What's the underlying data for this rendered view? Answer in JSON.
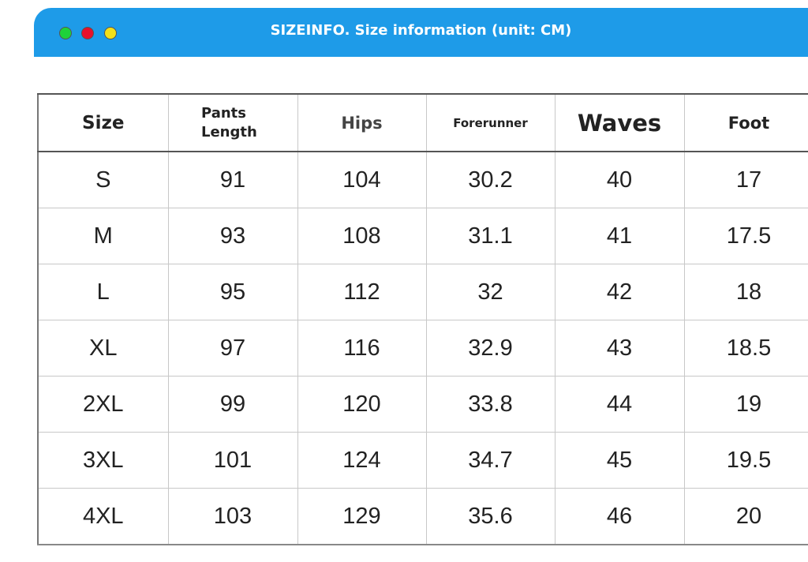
{
  "header": {
    "title": "SIZEINFO. Size information (unit: CM)"
  },
  "table": {
    "columns": [
      "Size",
      "Pants Length",
      "Hips",
      "Forerunner",
      "Waves",
      "Foot"
    ],
    "rows": [
      [
        "S",
        91,
        104,
        30.2,
        40,
        17
      ],
      [
        "M",
        93,
        108,
        31.1,
        41,
        17.5
      ],
      [
        "L",
        95,
        112,
        32,
        42,
        18
      ],
      [
        "XL",
        97,
        116,
        32.9,
        43,
        18.5
      ],
      [
        "2XL",
        99,
        120,
        33.8,
        44,
        19
      ],
      [
        "3XL",
        101,
        124,
        34.7,
        45,
        19.5
      ],
      [
        "4XL",
        103,
        129,
        35.6,
        46,
        20
      ]
    ]
  }
}
